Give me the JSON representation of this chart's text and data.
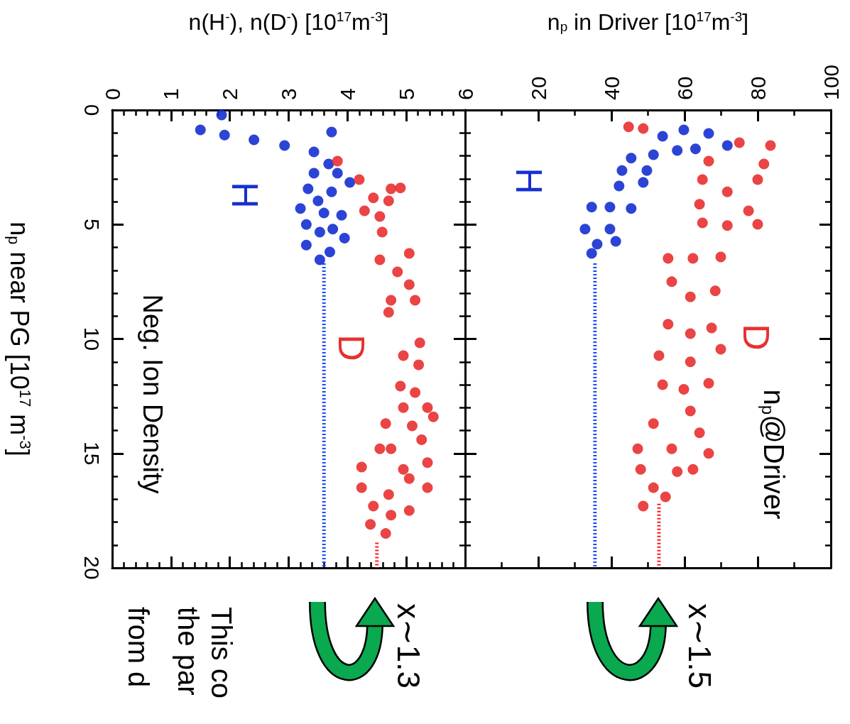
{
  "chart_data": [
    {
      "type": "scatter",
      "xlabel": "n(H$^{-}$), n(D$^{-}$) [10$^{17}$m$^{-3}$]",
      "ylabel": "n$_{p}$ near PG [10$^{17}$ m$^{-3}$]",
      "xlim": [
        0,
        6
      ],
      "xticks": [
        0,
        1,
        2,
        3,
        4,
        5,
        6
      ],
      "ylim": [
        20,
        0
      ],
      "yticks": [
        0,
        5,
        10,
        15,
        20
      ],
      "marker": "circle",
      "annotations": [
        "Neg. Ion Density",
        "x∼1.3",
        "This co",
        "the par",
        "from d"
      ],
      "series": [
        {
          "name": "H",
          "color": "#1530d0",
          "x": [
            1.5,
            1.91,
            2.41,
            2.93,
            3.43,
            3.68,
            3.43,
            3.83,
            3.33,
            4.04,
            3.73,
            3.5,
            3.2,
            3.9,
            3.3,
            3.53,
            3.95,
            3.3,
            3.7,
            3.53,
            3.6,
            3.75,
            1.86,
            3.73
          ],
          "values": [
            0.87,
            1.09,
            1.3,
            1.55,
            1.83,
            2.36,
            2.76,
            2.76,
            3.44,
            3.16,
            3.57,
            3.97,
            4.3,
            4.6,
            5.0,
            5.33,
            5.6,
            5.9,
            6.2,
            6.54,
            4.5,
            5.2,
            0.22,
            0.96
          ]
        },
        {
          "name": "D",
          "color": "#e83030",
          "x": [
            3.83,
            4.2,
            4.44,
            4.74,
            4.9,
            4.29,
            4.7,
            4.55,
            4.59,
            4.55,
            5.05,
            4.85,
            5.05,
            4.74,
            5.15,
            4.7,
            5.23,
            4.95,
            5.21,
            4.9,
            5.15,
            4.95,
            5.36,
            5.46,
            4.65,
            5.26,
            4.55,
            5.36,
            4.24,
            4.95,
            4.24,
            4.7,
            5.36,
            4.44,
            5.05,
            4.39,
            4.65,
            4.74,
            5.1,
            5.05,
            4.74
          ],
          "values": [
            2.23,
            3.04,
            3.84,
            3.44,
            3.4,
            4.4,
            3.97,
            4.65,
            5.33,
            6.54,
            6.26,
            7.07,
            7.63,
            8.31,
            8.31,
            8.84,
            10.17,
            10.73,
            11.13,
            12.06,
            12.34,
            13.0,
            13.0,
            13.4,
            13.7,
            14.4,
            14.8,
            15.4,
            15.6,
            15.7,
            16.5,
            16.8,
            16.5,
            17.3,
            17.5,
            18.1,
            18.5,
            14.8,
            13.8,
            16.1,
            17.7
          ]
        },
        {
          "type": "line",
          "color": "#1a4cff",
          "marker": "none",
          "line_style": "dotted",
          "x": [
            3.6,
            3.6
          ],
          "values": [
            6.7,
            20
          ]
        },
        {
          "type": "line",
          "color": "#ff1a1a",
          "marker": "none",
          "line_style": "dotted",
          "x": [
            4.5,
            4.5
          ],
          "values": [
            18.9,
            20
          ]
        }
      ]
    },
    {
      "type": "scatter",
      "xlabel": "n$_{p}$ in Driver [10$^{17}$m$^{-3}$]",
      "xlim": [
        0,
        100
      ],
      "xticks": [
        {
          "value": 0,
          "label": null
        },
        20,
        40,
        60,
        80,
        100
      ],
      "ylim": [
        20,
        0
      ],
      "yticks": [
        0,
        5,
        10,
        15,
        20
      ],
      "tick_labels": "x",
      "marker": "circle",
      "annotations": [
        "n$_{p}$@Driver",
        "x∼1.5"
      ],
      "series": [
        {
          "name": "H",
          "color": "#1530d0",
          "x": [
            54,
            59.8,
            66.6,
            71.7,
            63,
            58,
            51.5,
            45.4,
            42.9,
            49.7,
            42.1,
            48.7,
            39.6,
            45.4,
            34.6,
            32.8,
            39.6,
            41.2,
            34.6,
            36.1
          ],
          "values": [
            1.15,
            0.87,
            1.02,
            1.55,
            1.7,
            1.77,
            1.95,
            2.1,
            2.64,
            2.64,
            3.32,
            3.16,
            4.24,
            4.3,
            4.24,
            5.2,
            5.2,
            5.74,
            6.26,
            5.86
          ]
        },
        {
          "name": "D",
          "color": "#e83030",
          "x": [
            44.7,
            48.7,
            83.5,
            75,
            66.6,
            81.7,
            64.9,
            80,
            71.7,
            64.1,
            77.5,
            64.9,
            80,
            71.7,
            55.5,
            69.9,
            62.3,
            56.5,
            68.4,
            61.6,
            55.5,
            67.4,
            61.6,
            53,
            69.9,
            61.6,
            54,
            66.6,
            59.8,
            61.6,
            51.5,
            64.1,
            47.2,
            56.5,
            66.6,
            48,
            58,
            51.5,
            62.3,
            48.7,
            54.8
          ],
          "values": [
            0.74,
            0.81,
            1.55,
            1.43,
            2.23,
            2.36,
            3.04,
            3.04,
            3.57,
            4.12,
            4.4,
            4.93,
            4.99,
            5.05,
            6.48,
            6.42,
            6.48,
            7.5,
            7.9,
            8.16,
            9.36,
            9.52,
            9.77,
            10.73,
            10.45,
            11.0,
            12.0,
            11.94,
            12.2,
            13.15,
            13.7,
            14.1,
            14.8,
            14.8,
            15.0,
            15.7,
            15.8,
            16.5,
            15.7,
            17.3,
            16.9
          ]
        },
        {
          "type": "line",
          "color": "#1a4cff",
          "marker": "none",
          "line_style": "dotted",
          "x": [
            35.5,
            35.5
          ],
          "values": [
            6.7,
            20
          ]
        },
        {
          "type": "line",
          "color": "#ff1a1a",
          "marker": "none",
          "line_style": "dotted",
          "x": [
            53,
            53
          ],
          "values": [
            17.2,
            20
          ]
        }
      ]
    }
  ]
}
